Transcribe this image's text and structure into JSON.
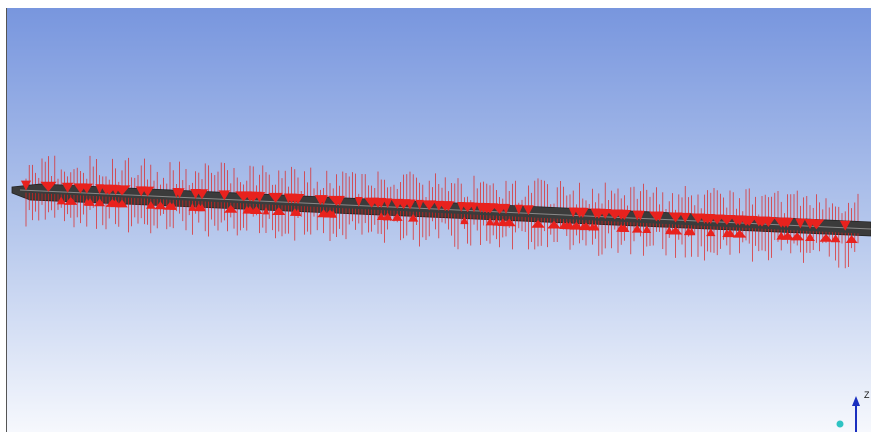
{
  "viewport": {
    "triad": {
      "z_label": "Z"
    }
  }
}
